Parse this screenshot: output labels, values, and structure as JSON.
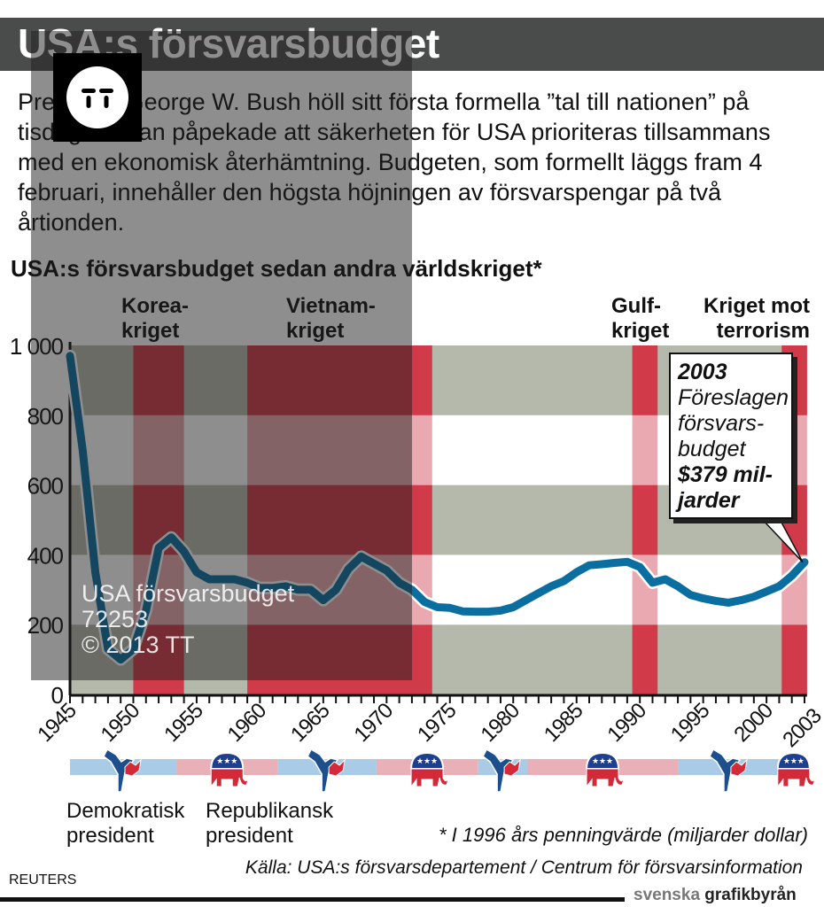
{
  "header": {
    "title": "USA:s försvarsbudget"
  },
  "intro": "President George W. Bush höll sitt första formella ”tal till nationen” på tisdagen. Han påpekade att säkerheten för USA prioriteras tillsammans med en ekonomisk återhämtning. Budgeten, som formellt läggs fram 4 februari, innehåller den högsta höjningen av försvarspengar på två årtionden.",
  "chart_data": {
    "type": "line",
    "title": "USA:s försvarsbudget sedan andra världskriget*",
    "xlabel": "",
    "ylabel": "",
    "xlim": [
      1945,
      2003
    ],
    "ylim": [
      0,
      1000
    ],
    "y_ticks": [
      "0",
      "200",
      "400",
      "600",
      "800",
      "1 000"
    ],
    "y_tick_values": [
      0,
      200,
      400,
      600,
      800,
      1000
    ],
    "x_ticks": [
      "1945",
      "1950",
      "1955",
      "1960",
      "1965",
      "1970",
      "1975",
      "1980",
      "1985",
      "1990",
      "1995",
      "2000",
      "2003"
    ],
    "series": [
      {
        "name": "Försvarsbudget (miljarder dollar, 1996 års penningvärde)",
        "x": [
          1945,
          1946,
          1947,
          1948,
          1949,
          1950,
          1951,
          1952,
          1953,
          1954,
          1955,
          1956,
          1957,
          1958,
          1959,
          1960,
          1961,
          1962,
          1963,
          1964,
          1965,
          1966,
          1967,
          1968,
          1969,
          1970,
          1971,
          1972,
          1973,
          1974,
          1975,
          1976,
          1977,
          1978,
          1979,
          1980,
          1981,
          1982,
          1983,
          1984,
          1985,
          1986,
          1987,
          1988,
          1989,
          1990,
          1991,
          1992,
          1993,
          1994,
          1995,
          1996,
          1997,
          1998,
          1999,
          2000,
          2001,
          2002,
          2003
        ],
        "values": [
          970,
          700,
          350,
          130,
          100,
          130,
          240,
          420,
          450,
          410,
          350,
          330,
          330,
          330,
          320,
          305,
          305,
          310,
          300,
          300,
          270,
          300,
          360,
          395,
          375,
          355,
          320,
          300,
          265,
          250,
          248,
          238,
          237,
          237,
          240,
          250,
          270,
          290,
          310,
          325,
          350,
          370,
          373,
          377,
          380,
          365,
          320,
          330,
          310,
          285,
          275,
          268,
          263,
          270,
          280,
          295,
          310,
          340,
          379
        ]
      }
    ],
    "war_periods": [
      {
        "label": "Korea-\nkriget",
        "l1": "Korea-",
        "l2": "kriget",
        "from": 1950,
        "to": 1954
      },
      {
        "label": "Vietnam-\nkriget",
        "l1": "Vietnam-",
        "l2": "kriget",
        "from": 1959,
        "to": 1973.6
      },
      {
        "label": "Gulf-\nkriget",
        "l1": "Gulf-",
        "l2": "kriget",
        "from": 1989.4,
        "to": 1991.4
      },
      {
        "label": "Kriget mot\nterrorism",
        "l1": "Kriget mot",
        "l2": "terrorism",
        "from": 2001.2,
        "to": 2003.2
      }
    ],
    "presidencies": [
      {
        "from": 1945,
        "to": 1953.4,
        "party": "D"
      },
      {
        "from": 1953.4,
        "to": 1961.4,
        "party": "R"
      },
      {
        "from": 1961.4,
        "to": 1969.2,
        "party": "D"
      },
      {
        "from": 1969.2,
        "to": 1977.2,
        "party": "R"
      },
      {
        "from": 1977.2,
        "to": 1981.1,
        "party": "D"
      },
      {
        "from": 1981.1,
        "to": 1993,
        "party": "R"
      },
      {
        "from": 1993,
        "to": 2001.1,
        "party": "D"
      },
      {
        "from": 2001.1,
        "to": 2003.2,
        "party": "R"
      }
    ],
    "annotation": {
      "year": "2003",
      "l1": "Föreslagen",
      "l2": "försvars-",
      "l3": "budget",
      "l4": "$379 mil-",
      "l5": "jarder"
    }
  },
  "legend": {
    "dem_l1": "Demokratisk",
    "dem_l2": "president",
    "rep_l1": "Republikansk",
    "rep_l2": "president"
  },
  "note": "* I 1996 års penningvärde (miljarder dollar)",
  "source": "Källa: USA:s försvarsdepartement / Centrum för försvarsinformation",
  "credit": "REUTERS",
  "brand": {
    "light": "svenska",
    "bold": "grafikbyrån"
  },
  "watermark": {
    "l1": "USA försvarsbudget",
    "l2": "72253",
    "l3": "© 2013 TT",
    "logo": "TT"
  },
  "colors": {
    "line": "#0b6ea0",
    "grey_band": "#b4b9ab",
    "war_red": "#d13a48",
    "war_pink": "#eaa9b1",
    "dem_blue": "#a9cbe6",
    "rep_pink": "#eab0b8"
  }
}
